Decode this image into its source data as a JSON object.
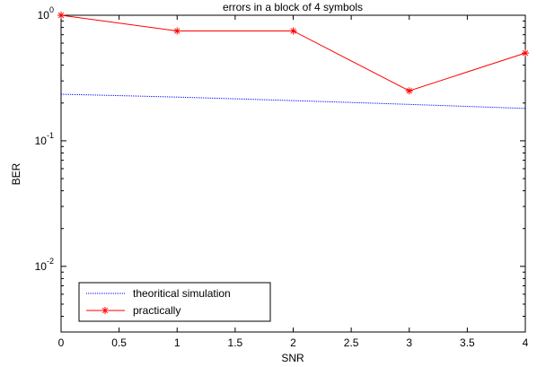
{
  "chart_data": {
    "type": "line",
    "title": "errors in a block of 4 symbols",
    "xlabel": "SNR",
    "ylabel": "BER",
    "xlim": [
      0,
      4
    ],
    "ylim": [
      0.003,
      1
    ],
    "yscale": "log",
    "grid": false,
    "legend_position": "bottom-left",
    "x_ticks": [
      "0",
      "0.5",
      "1",
      "1.5",
      "2",
      "2.5",
      "3",
      "3.5",
      "4"
    ],
    "y_ticks": [
      {
        "base": "10",
        "exp": "0"
      },
      {
        "base": "10",
        "exp": "-1"
      },
      {
        "base": "10",
        "exp": "-2"
      }
    ],
    "series": [
      {
        "name": "theoritical simulation",
        "color": "#0000ff",
        "line": "dotted",
        "marker": "none",
        "x": [
          0,
          0.5,
          1,
          1.5,
          2,
          2.5,
          3,
          3.5,
          4
        ],
        "values": [
          0.235,
          0.229,
          0.223,
          0.216,
          0.209,
          0.202,
          0.195,
          0.188,
          0.181
        ]
      },
      {
        "name": "practically",
        "color": "#ff0000",
        "line": "solid",
        "marker": "star",
        "x": [
          0,
          1,
          2,
          3,
          4
        ],
        "values": [
          1.0,
          0.75,
          0.75,
          0.25,
          0.5
        ]
      }
    ]
  }
}
